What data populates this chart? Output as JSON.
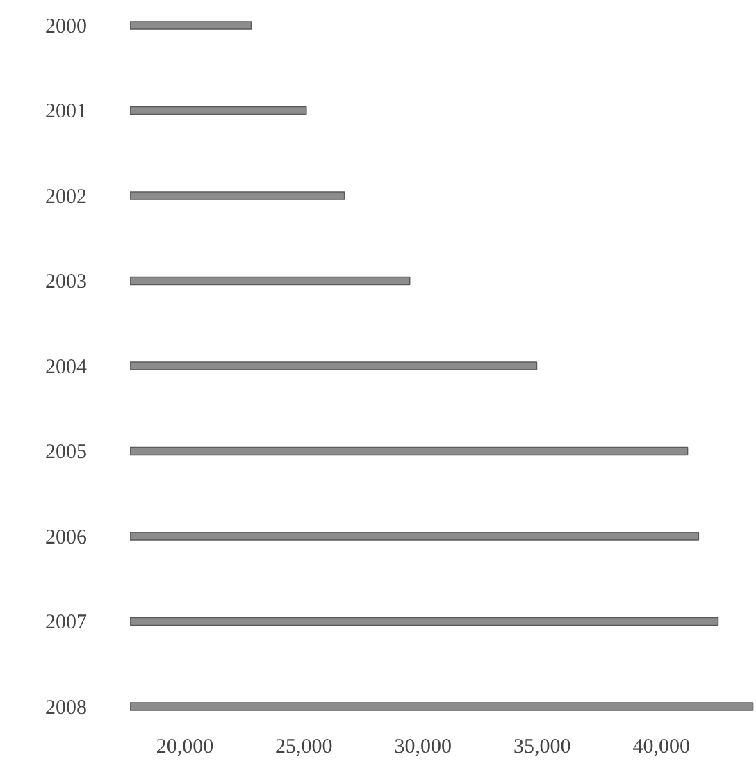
{
  "chart_data": {
    "type": "bar",
    "orientation": "horizontal",
    "categories": [
      "2000",
      "2001",
      "2002",
      "2003",
      "2004",
      "2005",
      "2006",
      "2007",
      "2008"
    ],
    "values": [
      22790,
      25100,
      26700,
      29440,
      34770,
      41100,
      41560,
      42380,
      43840
    ],
    "color": "#8c8c8c",
    "xlim": [
      17700,
      44000
    ],
    "xticks": [
      {
        "value": 20000,
        "label": "20,000"
      },
      {
        "value": 25000,
        "label": "25,000"
      },
      {
        "value": 30000,
        "label": "30,000"
      },
      {
        "value": 35000,
        "label": "35,000"
      },
      {
        "value": 40000,
        "label": "40,000"
      }
    ],
    "grid": false
  }
}
